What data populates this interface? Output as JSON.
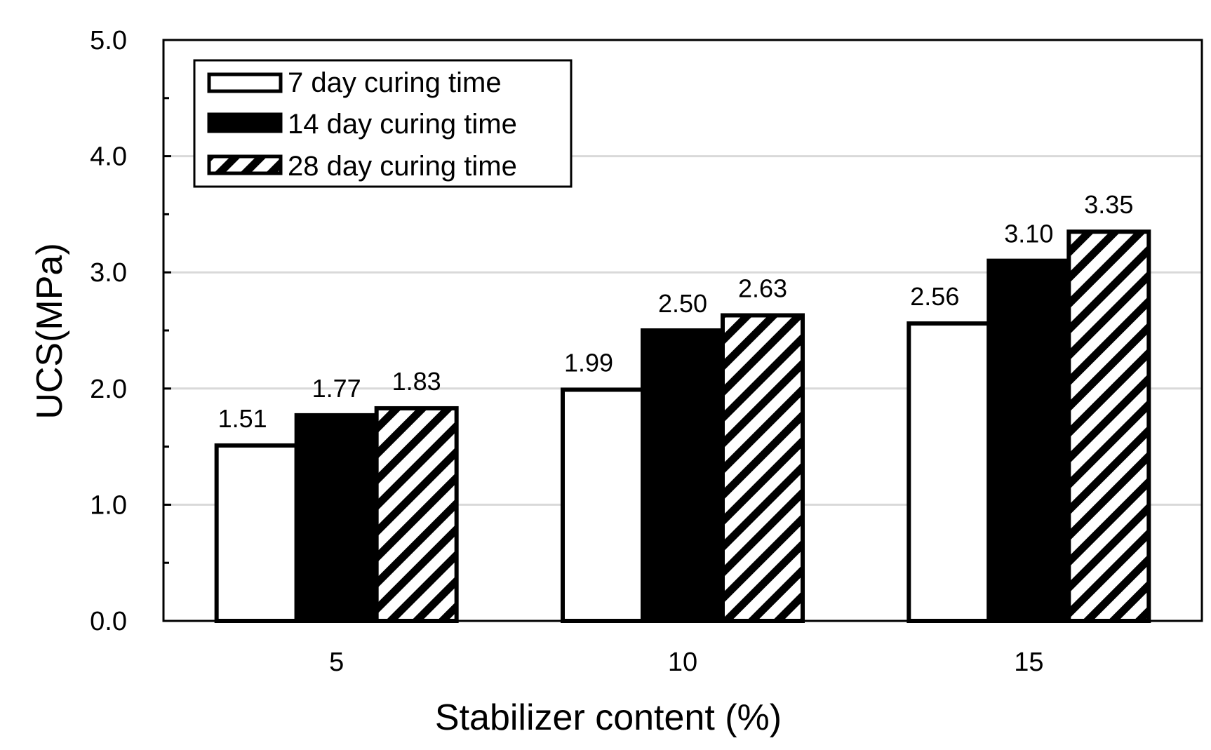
{
  "chart_data": {
    "type": "bar",
    "title": "",
    "xlabel": "Stabilizer content (%)",
    "ylabel": "UCS(MPa)",
    "ylim": [
      0,
      5
    ],
    "yticks": [
      "0.0",
      "1.0",
      "2.0",
      "3.0",
      "4.0",
      "5.0"
    ],
    "categories": [
      "5",
      "10",
      "15"
    ],
    "grid": true,
    "legend_position": "top-left",
    "series": [
      {
        "name": "7 day curing time",
        "style": "white",
        "values": [
          1.51,
          1.99,
          2.56
        ],
        "labels": [
          "1.51",
          "1.99",
          "2.56"
        ]
      },
      {
        "name": "14 day curing time",
        "style": "black",
        "values": [
          1.77,
          2.5,
          3.1
        ],
        "labels": [
          "1.77",
          "2.50",
          "3.10"
        ]
      },
      {
        "name": "28 day curing time",
        "style": "hatched",
        "values": [
          1.83,
          2.63,
          3.35
        ],
        "labels": [
          "1.83",
          "2.63",
          "3.35"
        ]
      }
    ],
    "colors": {
      "stroke": "#000000",
      "grid": "#d9d9d9",
      "fill_white": "#ffffff",
      "fill_black": "#000000"
    }
  }
}
